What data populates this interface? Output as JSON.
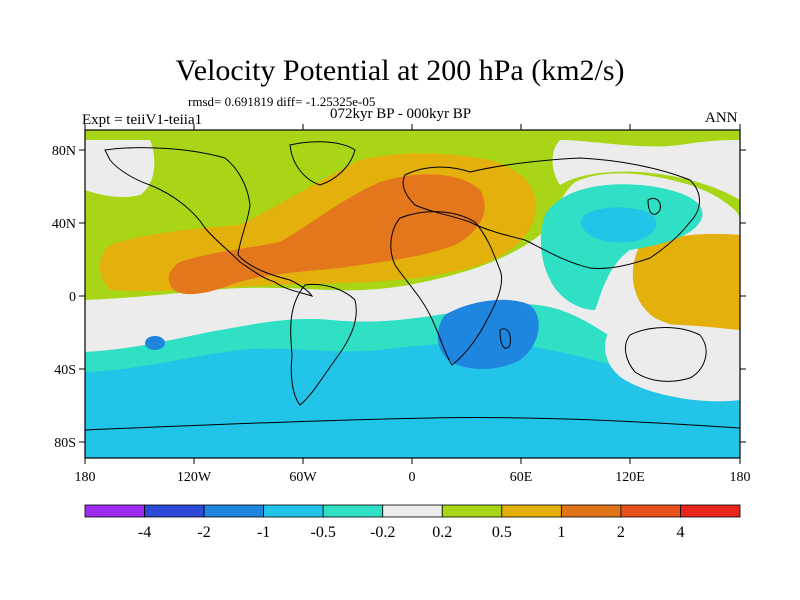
{
  "title": "Velocity Potential at 200 hPa (km2/s)",
  "stats": "rmsd= 0.691819 diff= -1.25325e-05",
  "expt": "Expt = teiiV1-teiia1",
  "period": "072kyr BP - 000kyr BP",
  "season": "ANN",
  "lat_labels": [
    "80N",
    "40N",
    "0",
    "40S",
    "80S"
  ],
  "lon_labels": [
    "180",
    "120W",
    "60W",
    "0",
    "60E",
    "120E",
    "180"
  ],
  "colorbar": {
    "labels": [
      "-4",
      "-2",
      "-1",
      "-0.5",
      "-0.2",
      "0.2",
      "0.5",
      "1",
      "2",
      "4"
    ],
    "colors": [
      "#9e2cf0",
      "#2c4bd8",
      "#1f86e0",
      "#22c4e8",
      "#2fe0c4",
      "#ececec",
      "#a8d617",
      "#e3b00c",
      "#e07318",
      "#e8501c",
      "#e8261c"
    ]
  },
  "palette": {
    "orange": "#e4761c",
    "gold": "#e3b00c",
    "lime": "#a8d617",
    "white": "#ececec",
    "teal": "#2fe0c4",
    "cyan": "#22c4e8",
    "blue": "#1f86e0"
  }
}
